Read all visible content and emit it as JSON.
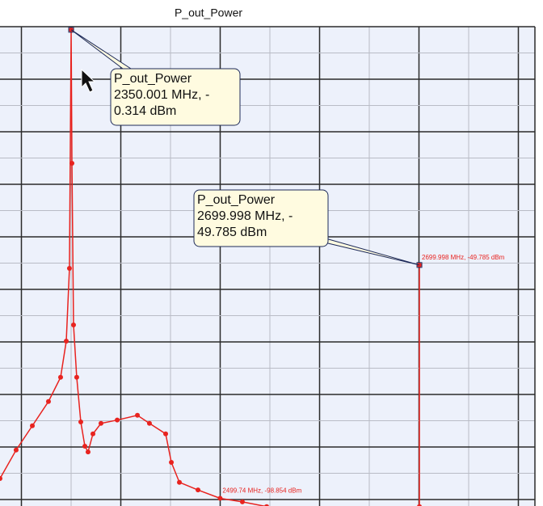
{
  "chart_data": {
    "type": "line",
    "title": "P_out_Power",
    "xlim": [
      2278.5,
      2816
    ],
    "ylim": [
      -100.6,
      0
    ],
    "grid": true,
    "series": [
      {
        "color": "#e8231f",
        "x": [
          2278.5,
          2294.7,
          2311.0,
          2327.2,
          2339.4,
          2345.1,
          2348.3,
          2350.001,
          2350.8,
          2352.4,
          2355.6,
          2359.7,
          2363.8,
          2367.0,
          2371.9,
          2380.0,
          2396.3,
          2416.6,
          2428.7,
          2445.0,
          2450.7,
          2458.8,
          2477.5,
          2499.74,
          2522.1,
          2546.5
        ],
        "values": [
          -94.7,
          -88.7,
          -83.6,
          -78.5,
          -73.4,
          -65.8,
          -50.5,
          -0.314,
          -28.4,
          -62.4,
          -73.4,
          -82.8,
          -87.9,
          -89.1,
          -85.3,
          -83.1,
          -82.4,
          -81.4,
          -83.1,
          -85.3,
          -91.3,
          -95.5,
          -97.1,
          -98.854,
          -99.6,
          -100.6
        ]
      },
      {
        "color": "#e8231f",
        "x": [
          2699.998,
          2700.0
        ],
        "values": [
          -49.785,
          -100.6
        ]
      }
    ],
    "annotations": [
      {
        "lines": [
          "P_out_Power",
          "2350.001 MHz, -",
          "0.314 dBm"
        ],
        "x": 2350.001,
        "y": -0.314
      },
      {
        "lines": [
          "P_out_Power",
          "2699.998 MHz, -",
          "49.785 dBm"
        ],
        "x": 2699.998,
        "y": -49.785
      }
    ],
    "point_labels": [
      {
        "text": "2699.998 MHz, -49.785 dBm",
        "x": 2699.998,
        "y": -49.785
      },
      {
        "text": "2499.74 MHz, -98.854 dBm",
        "x": 2499.74,
        "y": -98.854
      }
    ]
  }
}
